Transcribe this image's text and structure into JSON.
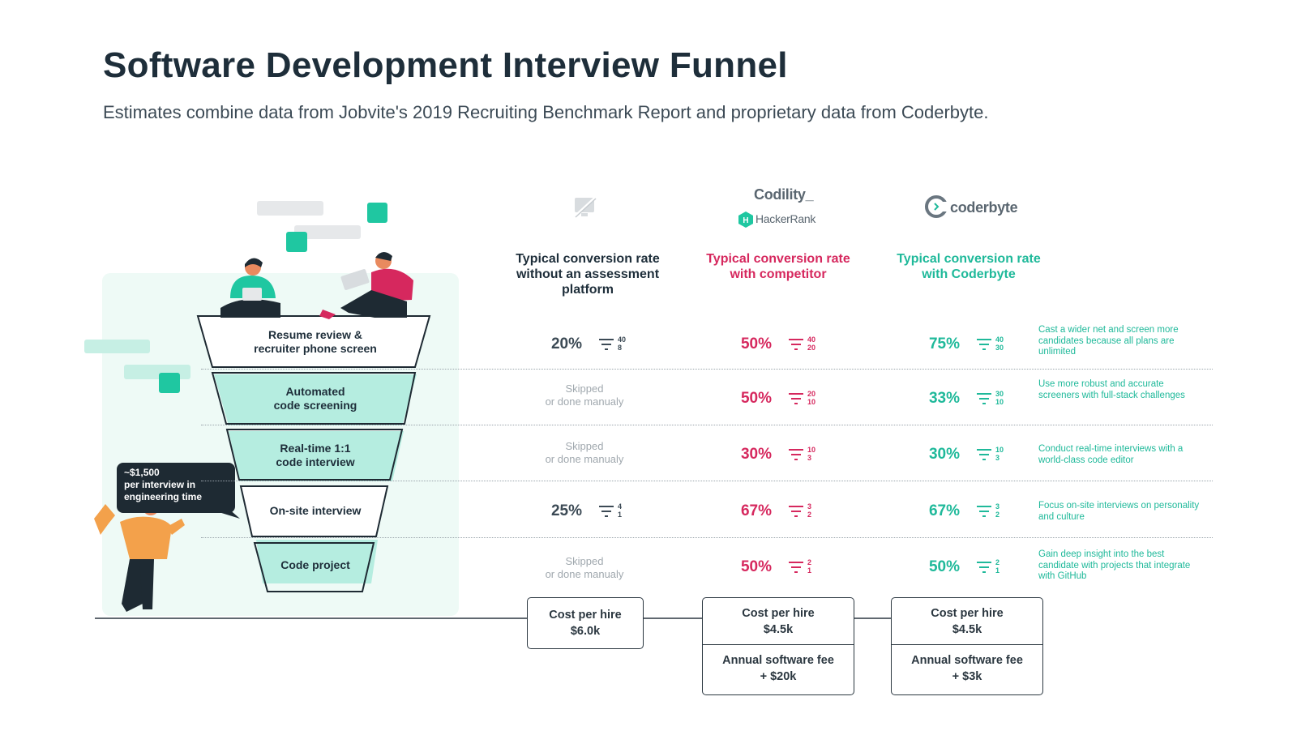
{
  "title": "Software Development Interview Funnel",
  "subtitle": "Estimates combine data from Jobvite's 2019 Recruiting Benchmark Report and proprietary data from Coderbyte.",
  "logos": {
    "codility": "Codility_",
    "hackerrank": "HackerRank",
    "coderbyte": "coderbyte"
  },
  "columns": {
    "none": "Typical conversion rate without an assessment platform",
    "competitor": "Typical conversion rate with competitor",
    "coderbyte": "Typical conversion rate with Coderbyte"
  },
  "callout": {
    "amount": "~$1,500",
    "line2": "per interview in",
    "line3": "engineering time"
  },
  "stages": [
    {
      "label_1": "Resume review &",
      "label_2": "recruiter phone screen",
      "none": {
        "rate": "20%",
        "top": "40",
        "bottom": "8"
      },
      "competitor": {
        "rate": "50%",
        "top": "40",
        "bottom": "20"
      },
      "coderbyte": {
        "rate": "75%",
        "top": "40",
        "bottom": "30"
      },
      "note": "Cast a wider net and screen more candidates because all plans are unlimited"
    },
    {
      "label_1": "Automated",
      "label_2": "code screening",
      "none": {
        "skipped_1": "Skipped",
        "skipped_2": "or done manualy"
      },
      "competitor": {
        "rate": "50%",
        "top": "20",
        "bottom": "10"
      },
      "coderbyte": {
        "rate": "33%",
        "top": "30",
        "bottom": "10"
      },
      "note": "Use more robust and accurate screeners with full-stack challenges"
    },
    {
      "label_1": "Real-time 1:1",
      "label_2": "code interview",
      "none": {
        "skipped_1": "Skipped",
        "skipped_2": "or done manualy"
      },
      "competitor": {
        "rate": "30%",
        "top": "10",
        "bottom": "3"
      },
      "coderbyte": {
        "rate": "30%",
        "top": "10",
        "bottom": "3"
      },
      "note": "Conduct real-time interviews with a world-class code editor"
    },
    {
      "label_1": "On-site interview",
      "label_2": "",
      "none": {
        "rate": "25%",
        "top": "4",
        "bottom": "1"
      },
      "competitor": {
        "rate": "67%",
        "top": "3",
        "bottom": "2"
      },
      "coderbyte": {
        "rate": "67%",
        "top": "3",
        "bottom": "2"
      },
      "note": "Focus on-site interviews on personality and culture"
    },
    {
      "label_1": "Code project",
      "label_2": "",
      "none": {
        "skipped_1": "Skipped",
        "skipped_2": "or done manualy"
      },
      "competitor": {
        "rate": "50%",
        "top": "2",
        "bottom": "1"
      },
      "coderbyte": {
        "rate": "50%",
        "top": "2",
        "bottom": "1"
      },
      "note": "Gain deep insight into the best candidate with projects that integrate with GitHub"
    }
  ],
  "costs": {
    "cost_label": "Cost per hire",
    "fee_label": "Annual software fee",
    "none_cost": "$6.0k",
    "competitor_cost": "$4.5k",
    "competitor_fee": "+ $20k",
    "coderbyte_cost": "$4.5k",
    "coderbyte_fee": "+ $3k"
  },
  "colors": {
    "competitor": "#d6285e",
    "coderbyte": "#1fb99a",
    "funnel_fill": "#b5ede0",
    "dark": "#1e2e3a"
  }
}
